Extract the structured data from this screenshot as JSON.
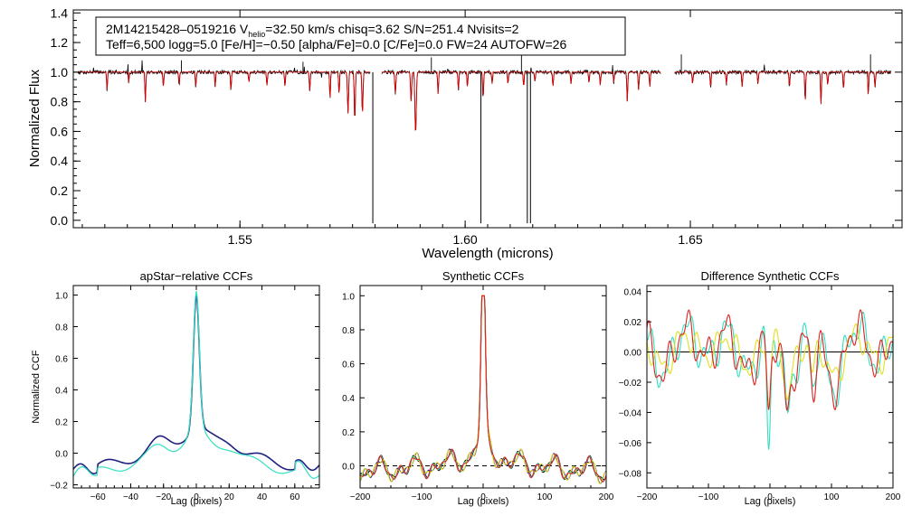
{
  "chart_data": [
    {
      "id": "spectrum",
      "type": "line",
      "title": "",
      "xlabel": "Wavelength (microns)",
      "ylabel": "Normalized Flux",
      "xlim": [
        1.513,
        1.697
      ],
      "ylim": [
        -0.05,
        1.42
      ],
      "xticks": [
        1.55,
        1.6,
        1.65
      ],
      "xtick_labels": [
        "1.55",
        "1.60",
        "1.65"
      ],
      "yticks": [
        0.0,
        0.2,
        0.4,
        0.6,
        0.8,
        1.0,
        1.2,
        1.4
      ],
      "ytick_labels": [
        "0.0",
        "0.2",
        "0.4",
        "0.6",
        "0.8",
        "1.0",
        "1.2",
        "1.4"
      ],
      "info_box": {
        "line1_a": "2M14215428–0519216  V",
        "line1_sub": "helio",
        "line1_b": "=32.50 km/s  chisq=3.62  S/N=251.4  Nvisits=2",
        "line2": "Teff=6,500 logg=5.0 [Fe/H]=−0.50 [alpha/Fe]=0.0 [C/Fe]=0.0 FW=24 AUTOFW=26"
      },
      "chips": [
        [
          1.514,
          1.579
        ],
        [
          1.5815,
          1.6435
        ],
        [
          1.6465,
          1.6945
        ]
      ],
      "absorption_lines": [
        [
          1.5205,
          0.12,
          0.1
        ],
        [
          1.5253,
          0.07,
          0.1
        ],
        [
          1.529,
          0.2,
          0.1
        ],
        [
          1.533,
          0.1,
          0.1
        ],
        [
          1.5365,
          0.09,
          0.1
        ],
        [
          1.5402,
          0.1,
          0.1
        ],
        [
          1.5445,
          0.1,
          0.1
        ],
        [
          1.548,
          0.12,
          0.1
        ],
        [
          1.552,
          0.07,
          0.1
        ],
        [
          1.556,
          0.09,
          0.1
        ],
        [
          1.56,
          0.1,
          0.1
        ],
        [
          1.5655,
          0.13,
          0.1
        ],
        [
          1.57,
          0.18,
          0.1
        ],
        [
          1.572,
          0.15,
          0.1
        ],
        [
          1.574,
          0.28,
          0.12
        ],
        [
          1.5755,
          0.33,
          0.12
        ],
        [
          1.5772,
          0.28,
          0.12
        ],
        [
          1.5845,
          0.14,
          0.12
        ],
        [
          1.588,
          0.2,
          0.12
        ],
        [
          1.589,
          0.42,
          0.15
        ],
        [
          1.594,
          0.15,
          0.1
        ],
        [
          1.5985,
          0.12,
          0.1
        ],
        [
          1.6005,
          0.1,
          0.1
        ],
        [
          1.604,
          0.18,
          0.1
        ],
        [
          1.606,
          0.08,
          0.1
        ],
        [
          1.6095,
          0.08,
          0.1
        ],
        [
          1.613,
          0.1,
          0.1
        ],
        [
          1.6155,
          0.06,
          0.1
        ],
        [
          1.6195,
          0.1,
          0.1
        ],
        [
          1.6235,
          0.08,
          0.1
        ],
        [
          1.6275,
          0.07,
          0.1
        ],
        [
          1.63,
          0.09,
          0.1
        ],
        [
          1.633,
          0.07,
          0.1
        ],
        [
          1.636,
          0.2,
          0.1
        ],
        [
          1.6385,
          0.12,
          0.1
        ],
        [
          1.641,
          0.1,
          0.1
        ],
        [
          1.6505,
          0.08,
          0.1
        ],
        [
          1.6545,
          0.1,
          0.1
        ],
        [
          1.658,
          0.08,
          0.1
        ],
        [
          1.6615,
          0.1,
          0.1
        ],
        [
          1.665,
          0.08,
          0.1
        ],
        [
          1.672,
          0.1,
          0.1
        ],
        [
          1.6755,
          0.2,
          0.1
        ],
        [
          1.679,
          0.22,
          0.1
        ],
        [
          1.6805,
          0.09,
          0.1
        ],
        [
          1.684,
          0.12,
          0.1
        ],
        [
          1.6895,
          0.16,
          0.1
        ],
        [
          1.691,
          0.1,
          0.1
        ]
      ],
      "spikes": [
        {
          "x": 1.5795,
          "y": -0.02
        },
        {
          "x": 1.6035,
          "y": -0.02
        },
        {
          "x": 1.6138,
          "y": -0.02
        },
        {
          "x": 1.6145,
          "y": -0.02
        }
      ],
      "series": [
        {
          "name": "observed",
          "color": "#000000"
        },
        {
          "name": "model",
          "color": "#d00000"
        }
      ]
    },
    {
      "id": "apstar",
      "type": "line",
      "title": "apStar−relative CCFs",
      "xlabel": "Lag (pixels)",
      "ylabel": "Normalized CCF",
      "xlim": [
        -75,
        75
      ],
      "ylim": [
        -0.22,
        1.06
      ],
      "xticks": [
        -60,
        -40,
        -20,
        0,
        20,
        40,
        60
      ],
      "xtick_labels": [
        "−60",
        "−40",
        "−20",
        "0",
        "20",
        "40",
        "60"
      ],
      "yticks": [
        -0.2,
        0.0,
        0.2,
        0.4,
        0.6,
        0.8,
        1.0
      ],
      "ytick_labels": [
        "−0.2",
        "0.0",
        "0.2",
        "0.4",
        "0.6",
        "0.8",
        "1.0"
      ],
      "series": [
        {
          "name": "visit-1",
          "color": "#202080"
        },
        {
          "name": "visit-2",
          "color": "#30e0c0"
        }
      ]
    },
    {
      "id": "synthetic",
      "type": "line",
      "title": "Synthetic CCFs",
      "xlabel": "Lag (pixels)",
      "ylabel": "",
      "xlim": [
        -200,
        200
      ],
      "ylim": [
        -0.13,
        1.06
      ],
      "xticks": [
        -200,
        -100,
        0,
        100,
        200
      ],
      "xtick_labels": [
        "−200",
        "−100",
        "0",
        "100",
        "200"
      ],
      "yticks": [
        0.0,
        0.2,
        0.4,
        0.6,
        0.8,
        1.0
      ],
      "ytick_labels": [
        "0.0",
        "0.2",
        "0.4",
        "0.6",
        "0.8",
        "1.0"
      ],
      "zero_line": true,
      "series": [
        {
          "name": "combined",
          "color": "#000000"
        },
        {
          "name": "visit-1",
          "color": "#1010a0"
        },
        {
          "name": "visit-2",
          "color": "#30e0c0"
        },
        {
          "name": "visit-3",
          "color": "#e0e020"
        },
        {
          "name": "visit-4",
          "color": "#e02020"
        }
      ]
    },
    {
      "id": "difference",
      "type": "line",
      "title": "Difference Synthetic CCFs",
      "xlabel": "Lag (pixels)",
      "ylabel": "",
      "xlim": [
        -200,
        200
      ],
      "ylim": [
        -0.09,
        0.044
      ],
      "xticks": [
        -200,
        -100,
        0,
        100,
        200
      ],
      "xtick_labels": [
        "−200",
        "−100",
        "0",
        "100",
        "200"
      ],
      "yticks": [
        -0.08,
        -0.06,
        -0.04,
        -0.02,
        0.0,
        0.02,
        0.04
      ],
      "ytick_labels": [
        "−0.08",
        "−0.06",
        "−0.04",
        "−0.02",
        "0.00",
        "0.02",
        "0.04"
      ],
      "zero_line": true,
      "series": [
        {
          "name": "visit-2",
          "color": "#30e0c0"
        },
        {
          "name": "visit-3",
          "color": "#e0e020"
        },
        {
          "name": "visit-4",
          "color": "#e02020"
        }
      ]
    }
  ]
}
